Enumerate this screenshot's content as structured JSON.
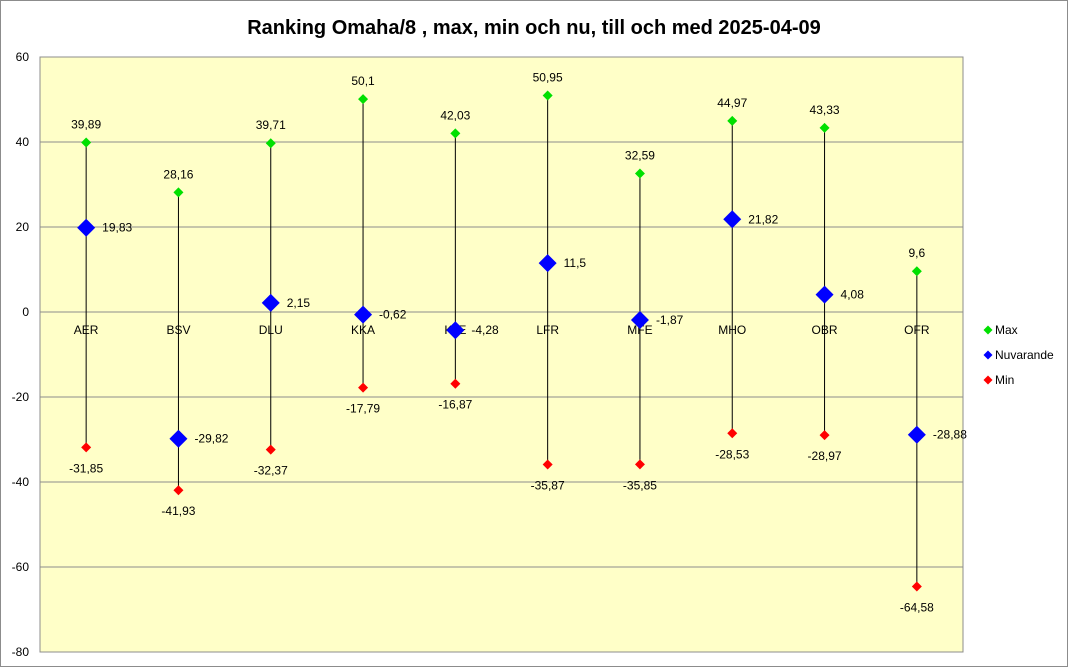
{
  "chart_data": {
    "type": "scatter",
    "title": "Ranking Omaha/8 , max, min och nu, till och med 2025-04-09",
    "categories": [
      "AER",
      "BSV",
      "DLU",
      "KKA",
      "KJE",
      "LFR",
      "MFE",
      "MHO",
      "OBR",
      "OFR"
    ],
    "series": [
      {
        "name": "Max",
        "color": "#00e000",
        "marker": "diamond-small",
        "values": [
          39.89,
          28.16,
          39.71,
          50.1,
          42.03,
          50.95,
          32.59,
          44.97,
          43.33,
          9.6
        ],
        "labels": [
          "39,89",
          "28,16",
          "39,71",
          "50,1",
          "42,03",
          "50,95",
          "32,59",
          "44,97",
          "43,33",
          "9,6"
        ]
      },
      {
        "name": "Nuvarande",
        "color": "#0000ff",
        "marker": "diamond-large",
        "values": [
          19.83,
          -29.82,
          2.15,
          -0.62,
          -4.28,
          11.5,
          -1.87,
          21.82,
          4.08,
          -28.88
        ],
        "labels": [
          "19,83",
          "-29,82",
          "2,15",
          "-0,62",
          "-4,28",
          "11,5",
          "-1,87",
          "21,82",
          "4,08",
          "-28,88"
        ]
      },
      {
        "name": "Min",
        "color": "#ff0000",
        "marker": "diamond-small",
        "values": [
          -31.85,
          -41.93,
          -32.37,
          -17.79,
          -16.87,
          -35.87,
          -35.85,
          -28.53,
          -28.97,
          -64.58
        ],
        "labels": [
          "-31,85",
          "-41,93",
          "-32,37",
          "-17,79",
          "-16,87",
          "-35,87",
          "-35,85",
          "-28,53",
          "-28,97",
          "-64,58"
        ]
      }
    ],
    "ylim": [
      -80,
      60
    ],
    "yticks": [
      "-80",
      "-60",
      "-40",
      "-20",
      "0",
      "20",
      "40",
      "60"
    ],
    "grid": true,
    "legend_position": "right",
    "plot_background": "#ffffc8",
    "high_low_lines": true
  }
}
